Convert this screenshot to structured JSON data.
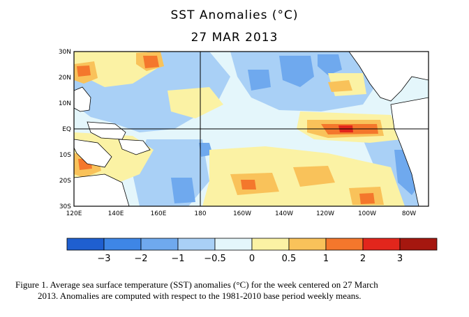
{
  "title": "SST Anomalies (°C)",
  "date": "27 MAR 2013",
  "lat_labels": [
    "30N",
    "20N",
    "10N",
    "EQ",
    "10S",
    "20S",
    "30S"
  ],
  "lon_labels": [
    "120E",
    "140E",
    "160E",
    "180",
    "160W",
    "140W",
    "120W",
    "100W",
    "80W"
  ],
  "colorbar": {
    "labels": [
      "−3",
      "−2",
      "−1",
      "−0.5",
      "0",
      "0.5",
      "1",
      "2",
      "3"
    ],
    "colors": [
      "#1f5fd0",
      "#3e86e6",
      "#6fa9ee",
      "#a9d0f6",
      "#e4f6fb",
      "#fbf2a4",
      "#f9c25a",
      "#f4772c",
      "#e2261c",
      "#a5170f"
    ]
  },
  "caption": {
    "line1": "Figure 1. Average sea surface temperature (SST) anomalies  (°C) for the week centered on 27 March",
    "line2": "2013.   Anomalies are computed with respect to the 1981-2010 base period weekly means."
  }
}
